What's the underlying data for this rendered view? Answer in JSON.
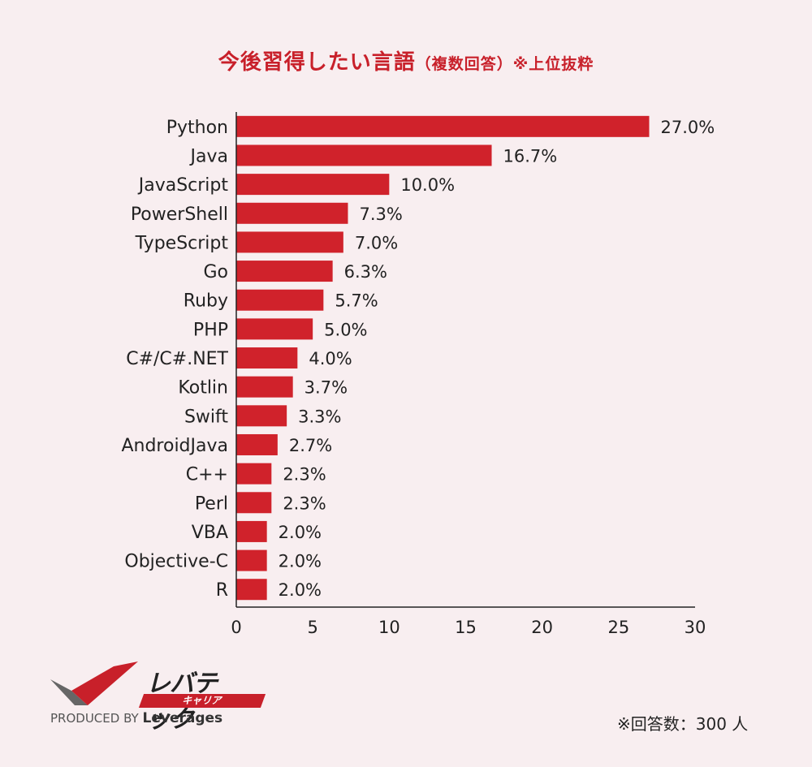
{
  "title": {
    "main": "今後習得したい言語",
    "sub": "（複数回答）※上位抜粋"
  },
  "chart_data": {
    "type": "bar",
    "orientation": "horizontal",
    "categories": [
      "Python",
      "Java",
      "JavaScript",
      "PowerShell",
      "TypeScript",
      "Go",
      "Ruby",
      "PHP",
      "C#/C#.NET",
      "Kotlin",
      "Swift",
      "AndroidJava",
      "C++",
      "Perl",
      "VBA",
      "Objective-C",
      "R"
    ],
    "values": [
      27.0,
      16.7,
      10.0,
      7.3,
      7.0,
      6.3,
      5.7,
      5.0,
      4.0,
      3.7,
      3.3,
      2.7,
      2.3,
      2.3,
      2.0,
      2.0,
      2.0
    ],
    "value_labels": [
      "27.0%",
      "16.7%",
      "10.0%",
      "7.3%",
      "7.0%",
      "6.3%",
      "5.7%",
      "5.0%",
      "4.0%",
      "3.7%",
      "3.3%",
      "2.7%",
      "2.3%",
      "2.3%",
      "2.0%",
      "2.0%",
      "2.0%"
    ],
    "xlim": [
      0,
      30
    ],
    "xticks": [
      0,
      5,
      10,
      15,
      20,
      25,
      30
    ],
    "bar_color": "#d0222b",
    "grid": false
  },
  "logo": {
    "brand": "レバテック",
    "tag": "キャリア",
    "produced_prefix": "PRODUCED BY",
    "produced_name": "Leverages"
  },
  "footnote": "※回答数：300 人",
  "colors": {
    "background": "#f8eef0",
    "accent": "#c8202a"
  }
}
